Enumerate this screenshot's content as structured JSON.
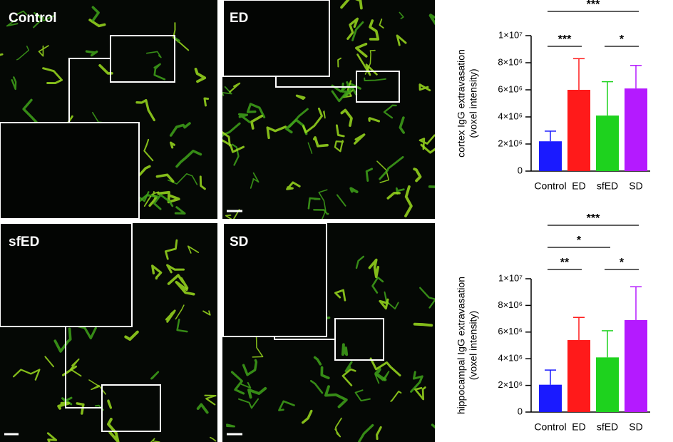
{
  "panels": [
    {
      "label": "Control"
    },
    {
      "label": "ED"
    },
    {
      "label": "sfED"
    },
    {
      "label": "SD"
    }
  ],
  "chart_data": [
    {
      "type": "bar",
      "ylabel": [
        "cortex IgG extravasation",
        "(voxel intensity)"
      ],
      "categories": [
        "Control",
        "ED",
        "sfED",
        "SD"
      ],
      "values": [
        2200000,
        6000000,
        4100000,
        6100000
      ],
      "errors": [
        750000,
        2300000,
        2500000,
        1700000
      ],
      "colors": [
        "#1a1aff",
        "#ff1a1a",
        "#1ed21e",
        "#b41aff"
      ],
      "ylim": [
        0,
        10000000
      ],
      "yticks": [
        0,
        {
          "value": 2000000,
          "label": "2×10⁶"
        },
        {
          "value": 4000000,
          "label": "4×10⁶"
        },
        {
          "value": 6000000,
          "label": "6×10⁶"
        },
        {
          "value": 8000000,
          "label": "8×10⁶"
        },
        {
          "value": 10000000,
          "label": "1×10⁷"
        }
      ],
      "significance": [
        {
          "from": "Control",
          "to": "SD",
          "label": "***"
        },
        {
          "from": "Control",
          "to": "ED",
          "label": "***"
        },
        {
          "from": "sfED",
          "to": "SD",
          "label": "*"
        }
      ]
    },
    {
      "type": "bar",
      "ylabel": [
        "hippocampal IgG extravasation",
        "(voxel intensity)"
      ],
      "categories": [
        "Control",
        "ED",
        "sfED",
        "SD"
      ],
      "values": [
        2050000,
        5400000,
        4100000,
        6900000
      ],
      "errors": [
        1100000,
        1700000,
        2000000,
        2500000
      ],
      "colors": [
        "#1a1aff",
        "#ff1a1a",
        "#1ed21e",
        "#b41aff"
      ],
      "ylim": [
        0,
        10000000
      ],
      "yticks": [
        0,
        {
          "value": 2000000,
          "label": "2×10⁶"
        },
        {
          "value": 4000000,
          "label": "4×10⁶"
        },
        {
          "value": 6000000,
          "label": "6×10⁶"
        },
        {
          "value": 8000000,
          "label": "8×10⁶"
        },
        {
          "value": 10000000,
          "label": "1×10⁷"
        }
      ],
      "significance": [
        {
          "from": "Control",
          "to": "SD",
          "label": "***"
        },
        {
          "from": "Control",
          "to": "sfED",
          "label": "*"
        },
        {
          "from": "Control",
          "to": "ED",
          "label": "**"
        },
        {
          "from": "sfED",
          "to": "SD",
          "label": "*"
        }
      ]
    }
  ]
}
